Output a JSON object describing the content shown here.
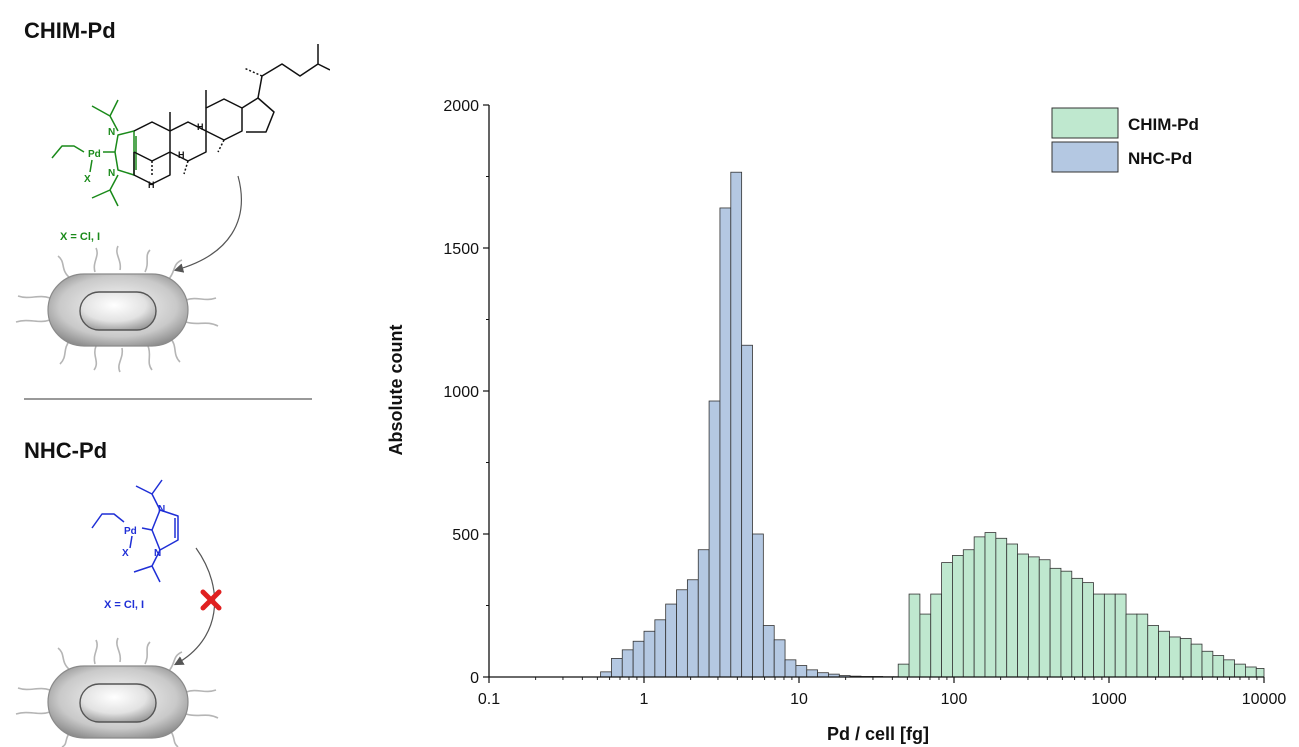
{
  "scheme": {
    "top": {
      "title": "CHIM-Pd",
      "metal": "Pd",
      "halide": "X",
      "n1": "N",
      "n2": "N",
      "h1": "H",
      "h2": "H",
      "h3": "H",
      "caption": "X = Cl, I"
    },
    "bottom": {
      "title": "NHC-Pd",
      "metal": "Pd",
      "halide": "X",
      "n1": "N",
      "n2": "N",
      "caption": "X = Cl, I"
    },
    "colors": {
      "chim": "#1a8a1a",
      "nhc": "#1f2fd6",
      "blocked": "#e02020"
    }
  },
  "chart_data": {
    "type": "bar",
    "xscale": "log",
    "xlim": [
      0.1,
      10000
    ],
    "ylim": [
      0,
      2000
    ],
    "xlabel": "Pd / cell [fg]",
    "ylabel": "Absolute count",
    "xticks": [
      {
        "value": 0.1,
        "label": "0.1"
      },
      {
        "value": 1,
        "label": "1"
      },
      {
        "value": 10,
        "label": "10"
      },
      {
        "value": 100,
        "label": "100"
      },
      {
        "value": 1000,
        "label": "1000"
      },
      {
        "value": 10000,
        "label": "10000"
      }
    ],
    "yticks": [
      {
        "value": 0,
        "label": "0"
      },
      {
        "value": 500,
        "label": "500"
      },
      {
        "value": 1000,
        "label": "1000"
      },
      {
        "value": 1500,
        "label": "1500"
      },
      {
        "value": 2000,
        "label": "2000"
      }
    ],
    "legend_position": "top-right",
    "series": [
      {
        "name": "NHC-Pd",
        "color": "#b4c8e2",
        "bin_edges": [
          0.525,
          0.617,
          0.724,
          0.851,
          1.0,
          1.175,
          1.38,
          1.622,
          1.905,
          2.239,
          2.63,
          3.09,
          3.631,
          4.266,
          5.012,
          5.888,
          6.918,
          8.128,
          9.55,
          11.22,
          13.18,
          15.49,
          18.2,
          21.38,
          25.12,
          29.51,
          34.67,
          40.74,
          47.86
        ],
        "values": [
          18,
          65,
          95,
          125,
          160,
          200,
          255,
          305,
          340,
          445,
          965,
          1640,
          1765,
          1160,
          500,
          180,
          130,
          60,
          40,
          25,
          15,
          10,
          5,
          3,
          2,
          2,
          1,
          1
        ]
      },
      {
        "name": "CHIM-Pd",
        "color": "#bfe8cf",
        "bin_edges": [
          43.65,
          51.29,
          60.26,
          70.79,
          83.18,
          97.72,
          114.8,
          134.9,
          158.5,
          186.2,
          218.8,
          257.0,
          302.0,
          354.8,
          416.9,
          489.8,
          575.4,
          676.1,
          794.3,
          933.3,
          1096.5,
          1288.2,
          1513.6,
          1778.3,
          2089.3,
          2454.7,
          2884.0,
          3388.4,
          3981.1,
          4677.4,
          5495.4,
          6456.5,
          7585.8,
          8912.5,
          10000
        ],
        "values": [
          45,
          290,
          220,
          290,
          400,
          425,
          445,
          490,
          505,
          485,
          465,
          430,
          420,
          410,
          380,
          370,
          345,
          330,
          290,
          290,
          290,
          220,
          220,
          180,
          160,
          140,
          135,
          115,
          90,
          75,
          60,
          45,
          35,
          30
        ]
      }
    ]
  }
}
